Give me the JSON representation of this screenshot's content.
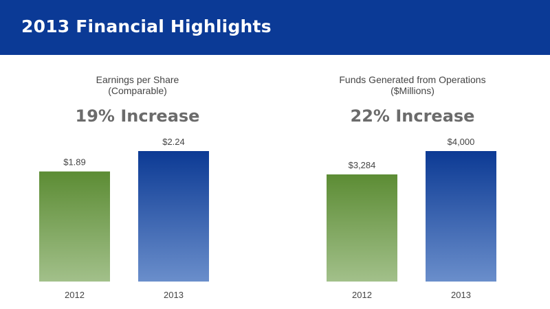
{
  "header": {
    "title": "2013 Financial Highlights"
  },
  "colors": {
    "header_bg": "#0b3a96",
    "bar_2012_top": "#5c8c34",
    "bar_2012_bottom": "#a2c08a",
    "bar_2013_top": "#0c3a94",
    "bar_2013_bottom": "#6a8ecb"
  },
  "charts": [
    {
      "title": "Earnings per Share",
      "subtitle": "(Comparable)",
      "headline": "19% Increase"
    },
    {
      "title": "Funds Generated from Operations",
      "subtitle": "($Millions)",
      "headline": "22% Increase"
    }
  ],
  "chart_data": [
    {
      "type": "bar",
      "title": "Earnings per Share",
      "subtitle": "(Comparable)",
      "annotation": "19% Increase",
      "categories": [
        "2012",
        "2013"
      ],
      "values": [
        1.89,
        2.24
      ],
      "labels": [
        "$1.89",
        "$2.24"
      ],
      "ylim": [
        0,
        2.24
      ]
    },
    {
      "type": "bar",
      "title": "Funds Generated from Operations",
      "subtitle": "($Millions)",
      "annotation": "22% Increase",
      "categories": [
        "2012",
        "2013"
      ],
      "values": [
        3284,
        4000
      ],
      "labels": [
        "$3,284",
        "$4,000"
      ],
      "ylim": [
        0,
        4000
      ]
    }
  ]
}
